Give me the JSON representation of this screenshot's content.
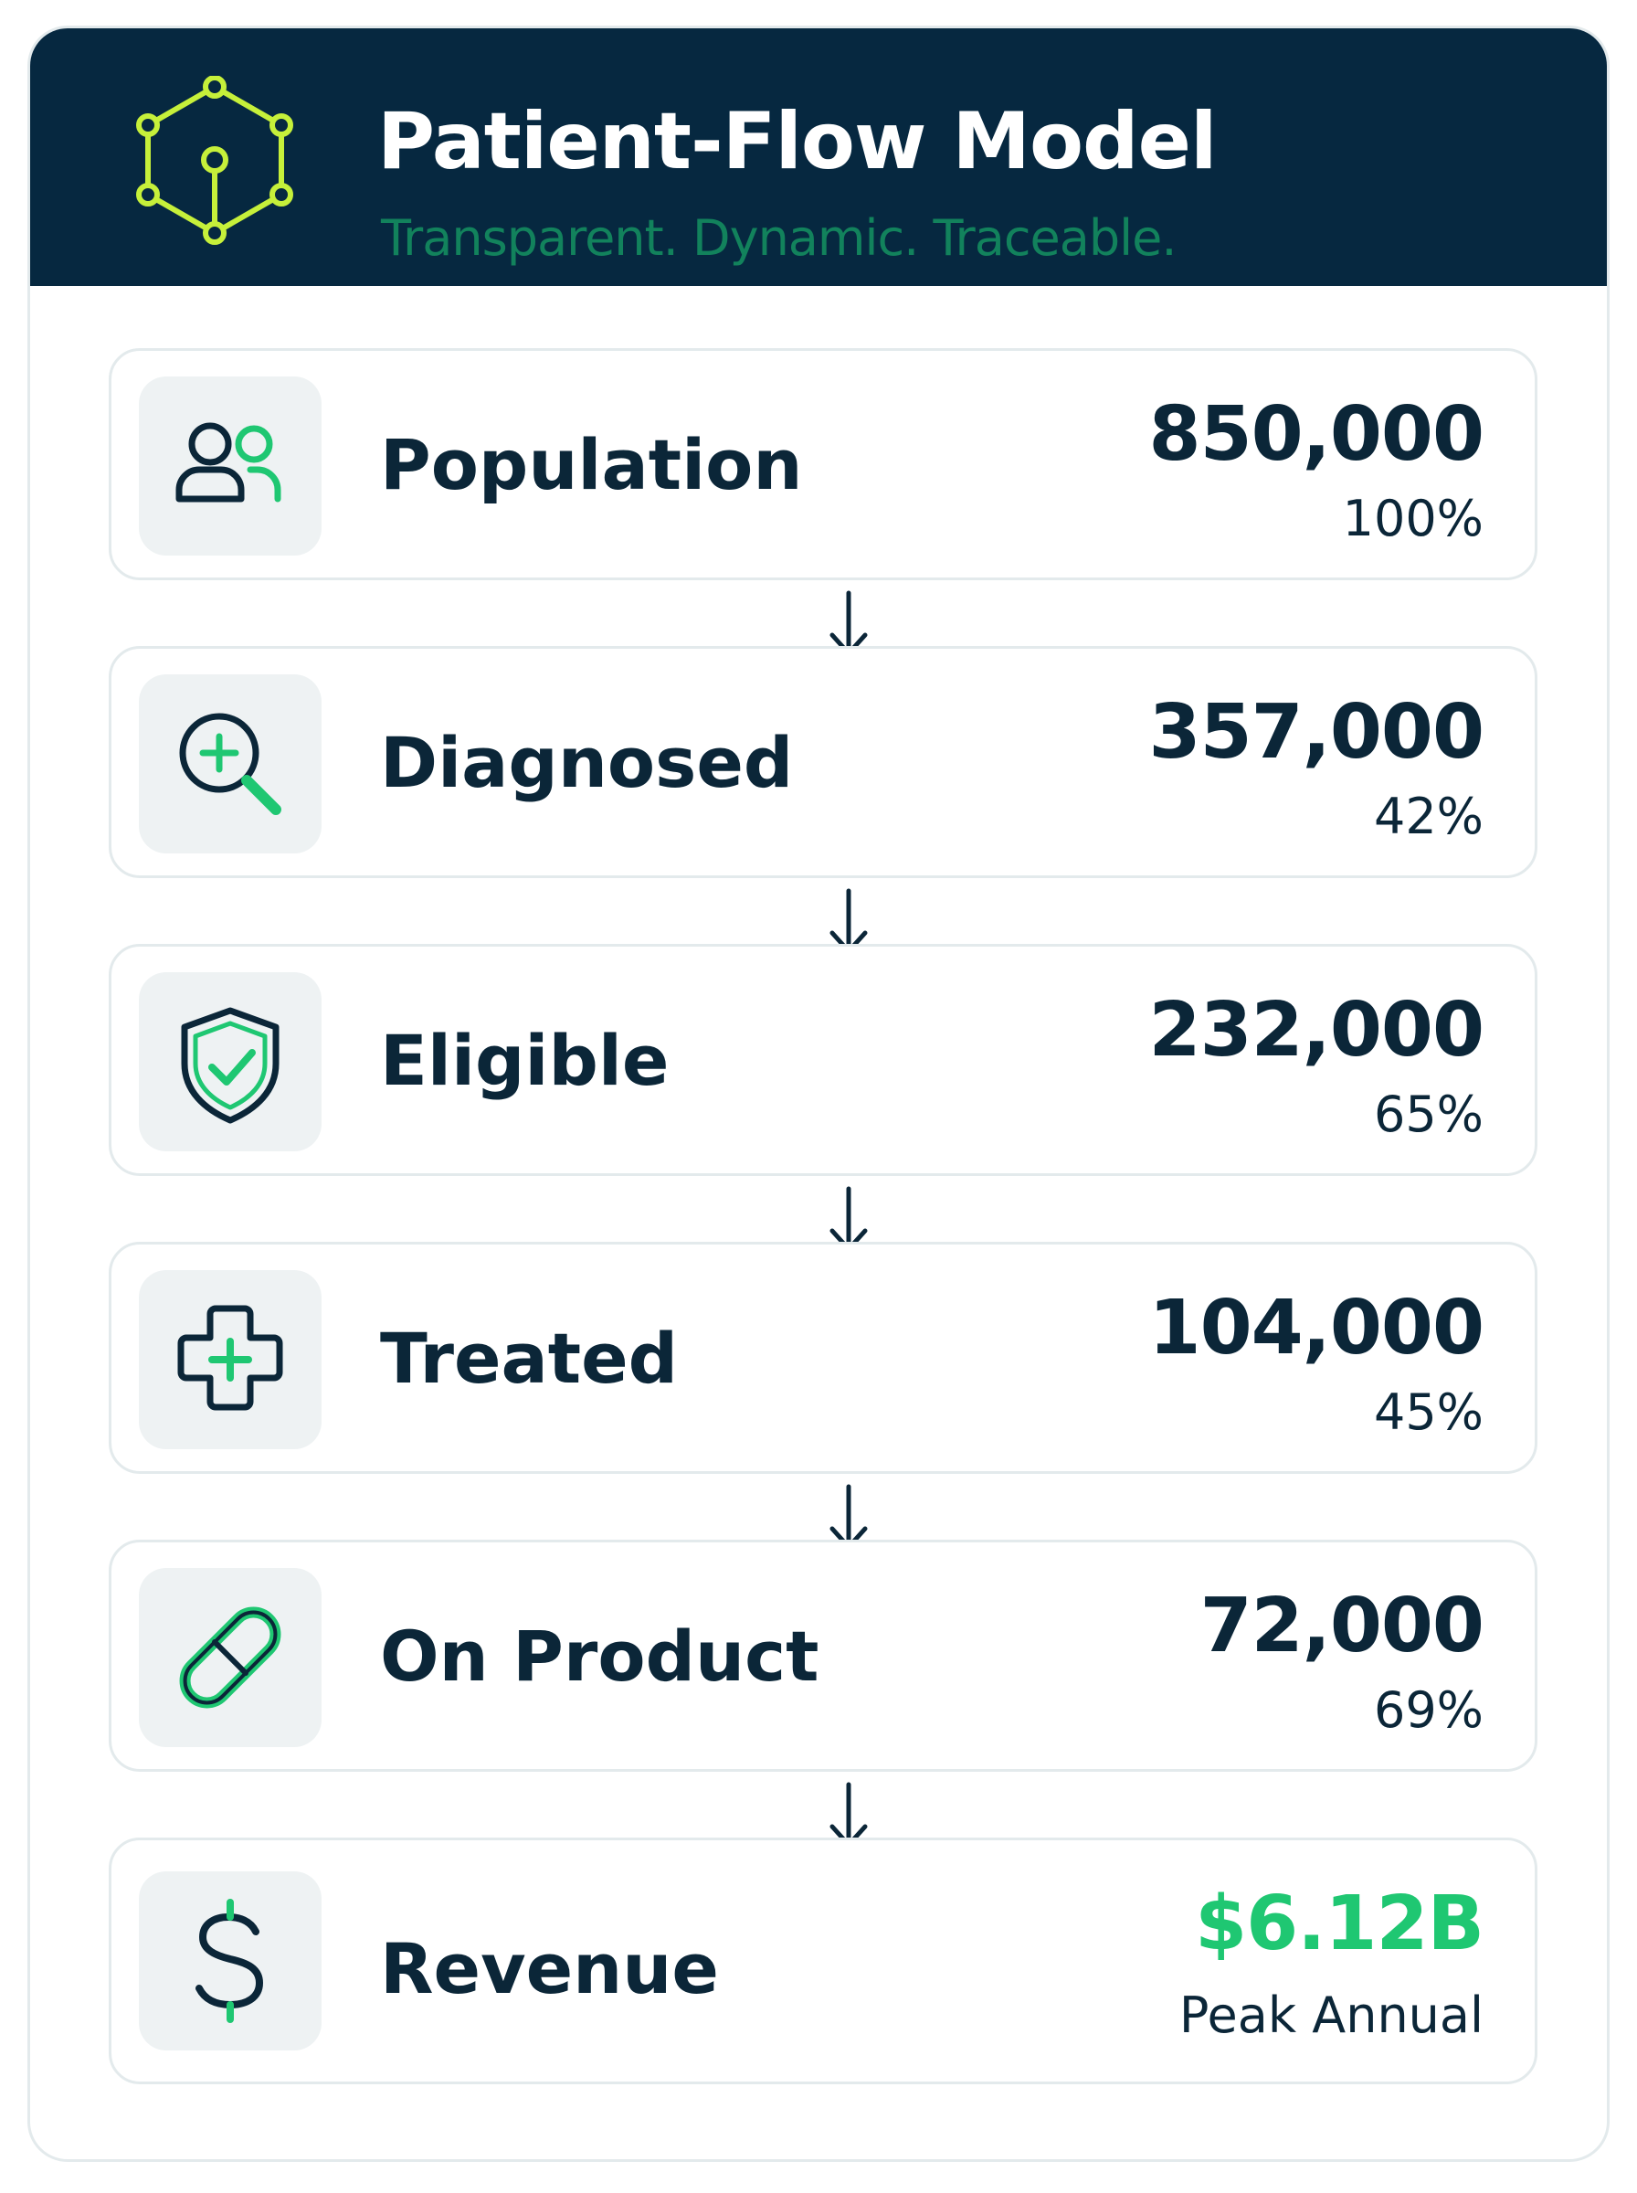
{
  "header": {
    "title": "Patient-Flow Model",
    "subtitle": "Transparent. Dynamic. Traceable.",
    "logo_icon": "hexagon-network-icon"
  },
  "steps": [
    {
      "label": "Population",
      "value": "850,000",
      "sub": "100%",
      "icon": "people-icon"
    },
    {
      "label": "Diagnosed",
      "value": "357,000",
      "sub": "42%",
      "icon": "magnifier-plus-icon"
    },
    {
      "label": "Eligible",
      "value": "232,000",
      "sub": "65%",
      "icon": "shield-check-icon"
    },
    {
      "label": "Treated",
      "value": "104,000",
      "sub": "45%",
      "icon": "medical-cross-icon"
    },
    {
      "label": "On Product",
      "value": "72,000",
      "sub": "69%",
      "icon": "pill-icon"
    },
    {
      "label": "Revenue",
      "value": "$6.12B",
      "sub": "Peak Annual",
      "icon": "dollar-icon"
    }
  ],
  "colors": {
    "header_bg": "#062840",
    "accent_green": "#1fc772",
    "dark_text": "#0b2638",
    "subtitle_green": "#12825c",
    "logo_lime": "#c6f03a"
  }
}
